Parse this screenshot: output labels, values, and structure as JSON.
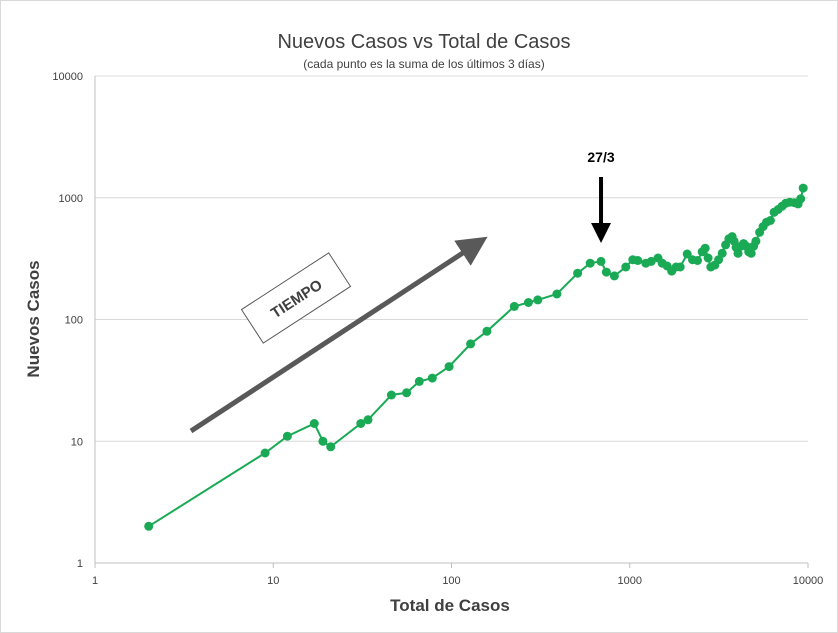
{
  "chart_data": {
    "type": "line",
    "title": "Nuevos Casos vs Total de Casos",
    "subtitle": "(cada punto es la suma de los últimos 3 días)",
    "xlabel": "Total de Casos",
    "ylabel": "Nuevos Casos",
    "xscale": "log",
    "yscale": "log",
    "xlim": [
      1,
      10000
    ],
    "ylim": [
      1,
      10000
    ],
    "x_ticks": [
      "1",
      "10",
      "100",
      "1000",
      "10000"
    ],
    "y_ticks": [
      "1",
      "10",
      "100",
      "1000",
      "10000"
    ],
    "grid": "horizontal",
    "legend": "none",
    "series": [
      {
        "color": "#1aaa55",
        "points": [
          [
            2,
            2
          ],
          [
            9,
            8
          ],
          [
            12,
            11
          ],
          [
            17,
            14
          ],
          [
            19,
            10
          ],
          [
            21,
            9
          ],
          [
            31,
            14
          ],
          [
            34,
            15
          ],
          [
            46,
            24
          ],
          [
            56,
            25
          ],
          [
            66,
            31
          ],
          [
            78,
            33
          ],
          [
            97,
            41
          ],
          [
            128,
            63
          ],
          [
            158,
            80
          ],
          [
            225,
            128
          ],
          [
            270,
            138
          ],
          [
            305,
            145
          ],
          [
            390,
            162
          ],
          [
            510,
            240
          ],
          [
            600,
            290
          ],
          [
            690,
            300
          ],
          [
            740,
            245
          ],
          [
            820,
            228
          ],
          [
            950,
            270
          ],
          [
            1040,
            310
          ],
          [
            1110,
            305
          ],
          [
            1230,
            290
          ],
          [
            1320,
            300
          ],
          [
            1440,
            320
          ],
          [
            1520,
            290
          ],
          [
            1620,
            275
          ],
          [
            1720,
            250
          ],
          [
            1820,
            270
          ],
          [
            1920,
            270
          ],
          [
            2100,
            345
          ],
          [
            2250,
            310
          ],
          [
            2400,
            305
          ],
          [
            2550,
            360
          ],
          [
            2650,
            385
          ],
          [
            2750,
            320
          ],
          [
            2850,
            270
          ],
          [
            3000,
            280
          ],
          [
            3150,
            310
          ],
          [
            3300,
            350
          ],
          [
            3450,
            410
          ],
          [
            3600,
            460
          ],
          [
            3750,
            480
          ],
          [
            3850,
            440
          ],
          [
            3950,
            390
          ],
          [
            4050,
            350
          ],
          [
            4200,
            400
          ],
          [
            4350,
            420
          ],
          [
            4500,
            400
          ],
          [
            4650,
            360
          ],
          [
            4800,
            350
          ],
          [
            4950,
            400
          ],
          [
            5100,
            440
          ],
          [
            5350,
            520
          ],
          [
            5600,
            580
          ],
          [
            5850,
            630
          ],
          [
            6150,
            650
          ],
          [
            6450,
            760
          ],
          [
            6800,
            800
          ],
          [
            7150,
            850
          ],
          [
            7500,
            900
          ],
          [
            7900,
            920
          ],
          [
            8400,
            910
          ],
          [
            8800,
            890
          ],
          [
            9100,
            980
          ],
          [
            9400,
            1200
          ]
        ]
      }
    ],
    "annotations": [
      {
        "text": "27/3",
        "x": 690,
        "type": "arrow-down"
      },
      {
        "text": "TIEMPO",
        "type": "arrow-trend"
      }
    ]
  }
}
